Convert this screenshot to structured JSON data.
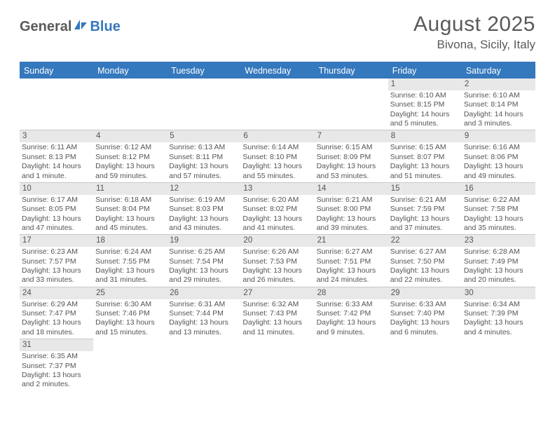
{
  "logo": {
    "text1": "General",
    "text2": "Blue"
  },
  "title": "August 2025",
  "location": "Bivona, Sicily, Italy",
  "colors": {
    "header_bg": "#3478bd",
    "daynum_bg": "#e8e8e8",
    "text": "#555555",
    "border": "#c8c8c8",
    "white": "#ffffff"
  },
  "dow": [
    "Sunday",
    "Monday",
    "Tuesday",
    "Wednesday",
    "Thursday",
    "Friday",
    "Saturday"
  ],
  "weeks": [
    [
      null,
      null,
      null,
      null,
      null,
      {
        "n": "1",
        "sr": "Sunrise: 6:10 AM",
        "ss": "Sunset: 8:15 PM",
        "d1": "Daylight: 14 hours",
        "d2": "and 5 minutes."
      },
      {
        "n": "2",
        "sr": "Sunrise: 6:10 AM",
        "ss": "Sunset: 8:14 PM",
        "d1": "Daylight: 14 hours",
        "d2": "and 3 minutes."
      }
    ],
    [
      {
        "n": "3",
        "sr": "Sunrise: 6:11 AM",
        "ss": "Sunset: 8:13 PM",
        "d1": "Daylight: 14 hours",
        "d2": "and 1 minute."
      },
      {
        "n": "4",
        "sr": "Sunrise: 6:12 AM",
        "ss": "Sunset: 8:12 PM",
        "d1": "Daylight: 13 hours",
        "d2": "and 59 minutes."
      },
      {
        "n": "5",
        "sr": "Sunrise: 6:13 AM",
        "ss": "Sunset: 8:11 PM",
        "d1": "Daylight: 13 hours",
        "d2": "and 57 minutes."
      },
      {
        "n": "6",
        "sr": "Sunrise: 6:14 AM",
        "ss": "Sunset: 8:10 PM",
        "d1": "Daylight: 13 hours",
        "d2": "and 55 minutes."
      },
      {
        "n": "7",
        "sr": "Sunrise: 6:15 AM",
        "ss": "Sunset: 8:09 PM",
        "d1": "Daylight: 13 hours",
        "d2": "and 53 minutes."
      },
      {
        "n": "8",
        "sr": "Sunrise: 6:15 AM",
        "ss": "Sunset: 8:07 PM",
        "d1": "Daylight: 13 hours",
        "d2": "and 51 minutes."
      },
      {
        "n": "9",
        "sr": "Sunrise: 6:16 AM",
        "ss": "Sunset: 8:06 PM",
        "d1": "Daylight: 13 hours",
        "d2": "and 49 minutes."
      }
    ],
    [
      {
        "n": "10",
        "sr": "Sunrise: 6:17 AM",
        "ss": "Sunset: 8:05 PM",
        "d1": "Daylight: 13 hours",
        "d2": "and 47 minutes."
      },
      {
        "n": "11",
        "sr": "Sunrise: 6:18 AM",
        "ss": "Sunset: 8:04 PM",
        "d1": "Daylight: 13 hours",
        "d2": "and 45 minutes."
      },
      {
        "n": "12",
        "sr": "Sunrise: 6:19 AM",
        "ss": "Sunset: 8:03 PM",
        "d1": "Daylight: 13 hours",
        "d2": "and 43 minutes."
      },
      {
        "n": "13",
        "sr": "Sunrise: 6:20 AM",
        "ss": "Sunset: 8:02 PM",
        "d1": "Daylight: 13 hours",
        "d2": "and 41 minutes."
      },
      {
        "n": "14",
        "sr": "Sunrise: 6:21 AM",
        "ss": "Sunset: 8:00 PM",
        "d1": "Daylight: 13 hours",
        "d2": "and 39 minutes."
      },
      {
        "n": "15",
        "sr": "Sunrise: 6:21 AM",
        "ss": "Sunset: 7:59 PM",
        "d1": "Daylight: 13 hours",
        "d2": "and 37 minutes."
      },
      {
        "n": "16",
        "sr": "Sunrise: 6:22 AM",
        "ss": "Sunset: 7:58 PM",
        "d1": "Daylight: 13 hours",
        "d2": "and 35 minutes."
      }
    ],
    [
      {
        "n": "17",
        "sr": "Sunrise: 6:23 AM",
        "ss": "Sunset: 7:57 PM",
        "d1": "Daylight: 13 hours",
        "d2": "and 33 minutes."
      },
      {
        "n": "18",
        "sr": "Sunrise: 6:24 AM",
        "ss": "Sunset: 7:55 PM",
        "d1": "Daylight: 13 hours",
        "d2": "and 31 minutes."
      },
      {
        "n": "19",
        "sr": "Sunrise: 6:25 AM",
        "ss": "Sunset: 7:54 PM",
        "d1": "Daylight: 13 hours",
        "d2": "and 29 minutes."
      },
      {
        "n": "20",
        "sr": "Sunrise: 6:26 AM",
        "ss": "Sunset: 7:53 PM",
        "d1": "Daylight: 13 hours",
        "d2": "and 26 minutes."
      },
      {
        "n": "21",
        "sr": "Sunrise: 6:27 AM",
        "ss": "Sunset: 7:51 PM",
        "d1": "Daylight: 13 hours",
        "d2": "and 24 minutes."
      },
      {
        "n": "22",
        "sr": "Sunrise: 6:27 AM",
        "ss": "Sunset: 7:50 PM",
        "d1": "Daylight: 13 hours",
        "d2": "and 22 minutes."
      },
      {
        "n": "23",
        "sr": "Sunrise: 6:28 AM",
        "ss": "Sunset: 7:49 PM",
        "d1": "Daylight: 13 hours",
        "d2": "and 20 minutes."
      }
    ],
    [
      {
        "n": "24",
        "sr": "Sunrise: 6:29 AM",
        "ss": "Sunset: 7:47 PM",
        "d1": "Daylight: 13 hours",
        "d2": "and 18 minutes."
      },
      {
        "n": "25",
        "sr": "Sunrise: 6:30 AM",
        "ss": "Sunset: 7:46 PM",
        "d1": "Daylight: 13 hours",
        "d2": "and 15 minutes."
      },
      {
        "n": "26",
        "sr": "Sunrise: 6:31 AM",
        "ss": "Sunset: 7:44 PM",
        "d1": "Daylight: 13 hours",
        "d2": "and 13 minutes."
      },
      {
        "n": "27",
        "sr": "Sunrise: 6:32 AM",
        "ss": "Sunset: 7:43 PM",
        "d1": "Daylight: 13 hours",
        "d2": "and 11 minutes."
      },
      {
        "n": "28",
        "sr": "Sunrise: 6:33 AM",
        "ss": "Sunset: 7:42 PM",
        "d1": "Daylight: 13 hours",
        "d2": "and 9 minutes."
      },
      {
        "n": "29",
        "sr": "Sunrise: 6:33 AM",
        "ss": "Sunset: 7:40 PM",
        "d1": "Daylight: 13 hours",
        "d2": "and 6 minutes."
      },
      {
        "n": "30",
        "sr": "Sunrise: 6:34 AM",
        "ss": "Sunset: 7:39 PM",
        "d1": "Daylight: 13 hours",
        "d2": "and 4 minutes."
      }
    ],
    [
      {
        "n": "31",
        "sr": "Sunrise: 6:35 AM",
        "ss": "Sunset: 7:37 PM",
        "d1": "Daylight: 13 hours",
        "d2": "and 2 minutes."
      },
      null,
      null,
      null,
      null,
      null,
      null
    ]
  ]
}
